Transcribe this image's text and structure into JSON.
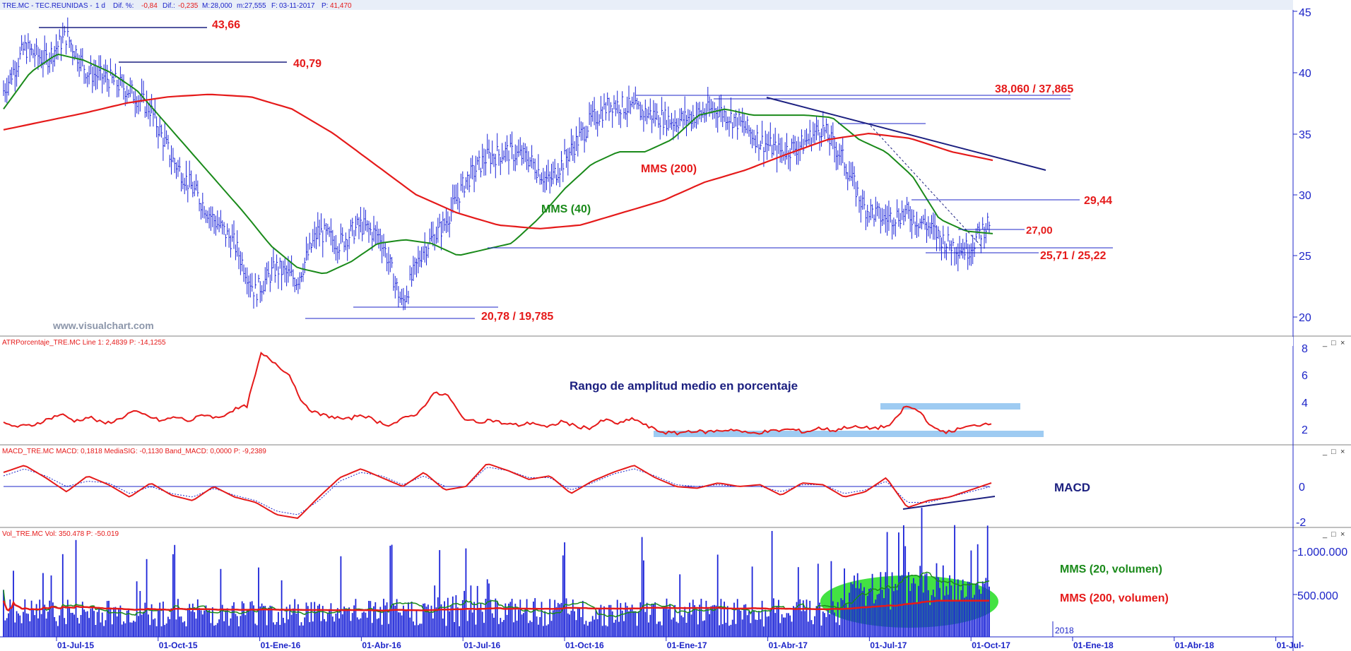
{
  "colors": {
    "background": "#ffffff",
    "header_bar": "#e8eef8",
    "price_bars": "#1c24d8",
    "sma_short": "#1a8a1a",
    "sma_long": "#e51a1a",
    "annotation_text": "#e51a1a",
    "trend_line": "#1c2080",
    "axis_text": "#1c24c8",
    "highlight_band": "#9ecbf2",
    "volume_blob": "#22dd22",
    "watermark": "#8c96aa"
  },
  "main_panel": {
    "header": {
      "symbol": "TRE.MC - TEC.REUNIDAS -",
      "timeframe": "1 d",
      "dif_pct_label": "Dif. %:",
      "dif_pct_value": "-0,84",
      "dif_label": "Dif.:",
      "dif_value": "-0,235",
      "max_label": "M:",
      "max_value": "28,000",
      "min_label": "m:",
      "min_value": "27,555",
      "date_label": "F:",
      "date_value": "03-11-2017",
      "close_label": "P:",
      "close_value": "41,470"
    },
    "watermark": "www.visualchart.com",
    "y_axis_ticks": [
      "45",
      "40",
      "35",
      "30",
      "25",
      "20"
    ],
    "annotations": {
      "high_1": "43,66",
      "high_2": "40,79",
      "resistance": "38,060 / 37,865",
      "level_29": "29,44",
      "level_27": "27,00",
      "support": "25,71 / 25,22",
      "low": "20,78 / 19,785",
      "sma200_label": "MMS (200)",
      "sma40_label": "MMS (40)"
    }
  },
  "atr_panel": {
    "header": "ATRPorcentaje_TRE.MC  Line 1: 2,4839  P: -14,1255",
    "title": "Rango de amplitud medio en porcentaje",
    "y_axis_ticks": [
      "8",
      "6",
      "4",
      "2"
    ]
  },
  "macd_panel": {
    "header": "MACD_TRE.MC  MACD: 0,1818  MediaSIG: -0,1130  Band_MACD: 0,0000  P: -9,2389",
    "title": "MACD",
    "y_axis_ticks": [
      "0",
      "-2"
    ]
  },
  "volume_panel": {
    "header": "Vol_TRE.MC  Vol: 350.478  P: -50.019",
    "sma20_label": "MMS (20, volumen)",
    "sma200_label": "MMS (200, volumen)",
    "y_axis_ticks": [
      "1.000.000",
      "500.000"
    ],
    "year_marker": "2018"
  },
  "x_axis_labels": [
    "01-Jul-15",
    "01-Oct-15",
    "01-Ene-16",
    "01-Abr-16",
    "01-Jul-16",
    "01-Oct-16",
    "01-Ene-17",
    "01-Abr-17",
    "01-Jul-17",
    "01-Oct-17",
    "01-Ene-18",
    "01-Abr-18",
    "01-Jul-"
  ],
  "window_buttons": [
    "_",
    "□",
    "×"
  ],
  "chart_data": [
    {
      "type": "ohlc",
      "series": [
        {
          "name": "MMS (40)"
        },
        {
          "name": "MMS (200)"
        }
      ],
      "ylim": [
        18,
        45
      ],
      "x": [
        "01-Jul-15",
        "01-Oct-15",
        "01-Ene-16",
        "01-Abr-16",
        "01-Jul-16",
        "01-Oct-16",
        "01-Ene-17",
        "01-Abr-17",
        "01-Jul-17",
        "01-Oct-17"
      ],
      "close_path": [
        38.5,
        42,
        41,
        43,
        40,
        39.5,
        38.5,
        37,
        33,
        30.5,
        28,
        26,
        22,
        24,
        23,
        27,
        26,
        27.5,
        26.5,
        21,
        25.5,
        27.5,
        31,
        33,
        33.5,
        33,
        31,
        33.5,
        36,
        37.5,
        37,
        36.5,
        36,
        36.5,
        37,
        36,
        34.5,
        33.5,
        34,
        35.5,
        33,
        29,
        28,
        28.5,
        27.5,
        26,
        25.5,
        27.8
      ],
      "sma40_path": [
        37,
        40,
        41.5,
        41,
        40,
        38.5,
        36,
        33.5,
        31,
        28.5,
        25.8,
        24,
        23.5,
        24.5,
        26,
        26.3,
        26,
        25,
        25.5,
        26,
        28,
        30.5,
        32.5,
        33.5,
        33.5,
        34.5,
        36.5,
        37,
        36.5,
        36.5,
        36.5,
        36.3,
        34.5,
        33.5,
        31.5,
        28,
        27,
        26.8
      ],
      "sma200_path": [
        35.3,
        36,
        36.7,
        37.5,
        38,
        38.2,
        38,
        37,
        35,
        32.5,
        30,
        28.5,
        27.5,
        27.2,
        27.5,
        28.5,
        29.5,
        31,
        32,
        33.3,
        34.5,
        35,
        34.6,
        33.5,
        32.8
      ]
    },
    {
      "type": "line",
      "series": [
        {
          "name": "ATRPorcentaje_TRE.MC"
        }
      ],
      "ylim": [
        1,
        8
      ],
      "values": [
        2.5,
        2.3,
        2.4,
        2.8,
        3.2,
        2.7,
        3.0,
        2.5,
        2.8,
        3.4,
        3.1,
        2.7,
        3.0,
        2.7,
        3.2,
        2.9,
        3.5,
        3.8,
        7.6,
        6.9,
        6.0,
        3.8,
        3.2,
        3.0,
        2.8,
        3.2,
        2.7,
        2.4,
        2.9,
        3.3,
        4.7,
        4.6,
        3.0,
        2.6,
        2.8,
        2.5,
        2.4,
        2.6,
        2.2,
        2.7,
        2.3,
        2.2,
        2.8,
        2.5,
        2.9,
        2.3,
        1.9,
        1.8,
        2.0,
        1.9,
        2.0,
        2.1,
        1.8,
        1.9,
        2.0,
        2.1,
        1.9,
        2.2,
        2.0,
        2.3,
        2.2,
        2.2,
        2.4,
        3.8,
        3.4,
        2.1,
        1.9,
        2.2,
        2.4,
        2.6
      ]
    },
    {
      "type": "line",
      "series": [
        {
          "name": "MACD"
        },
        {
          "name": "MediaSIG"
        }
      ],
      "ylim": [
        -2.5,
        1.8
      ],
      "macd": [
        0.8,
        1.2,
        0.5,
        -0.3,
        0.6,
        0.1,
        -0.6,
        0.2,
        -0.5,
        -0.8,
        0.0,
        -0.6,
        -0.9,
        -1.6,
        -1.8,
        -0.6,
        0.5,
        1.0,
        0.5,
        0.0,
        0.8,
        -0.2,
        0.0,
        1.3,
        0.9,
        0.4,
        0.6,
        -0.4,
        0.3,
        0.8,
        1.2,
        0.5,
        0.0,
        -0.1,
        0.2,
        0.0,
        0.1,
        -0.5,
        0.2,
        0.1,
        -0.6,
        -0.3,
        0.5,
        -1.2,
        -0.8,
        -0.6,
        -0.2,
        0.2
      ],
      "signal": [
        0.6,
        1.0,
        0.6,
        0.0,
        0.3,
        0.2,
        -0.4,
        0.0,
        -0.4,
        -0.6,
        -0.1,
        -0.5,
        -0.8,
        -1.4,
        -1.6,
        -0.8,
        0.3,
        0.8,
        0.6,
        0.1,
        0.6,
        0.0,
        0.0,
        1.1,
        0.9,
        0.5,
        0.5,
        -0.2,
        0.2,
        0.7,
        1.0,
        0.6,
        0.1,
        0.0,
        0.1,
        0.0,
        0.0,
        -0.3,
        0.1,
        0.1,
        -0.4,
        -0.2,
        0.3,
        -0.9,
        -0.9,
        -0.6,
        -0.3,
        0.0
      ]
    },
    {
      "type": "bar",
      "series": [
        {
          "name": "Vol_TRE.MC"
        },
        {
          "name": "MMS (20, volumen)"
        },
        {
          "name": "MMS (200, volumen)"
        }
      ],
      "ylim": [
        0,
        1200000
      ]
    }
  ]
}
